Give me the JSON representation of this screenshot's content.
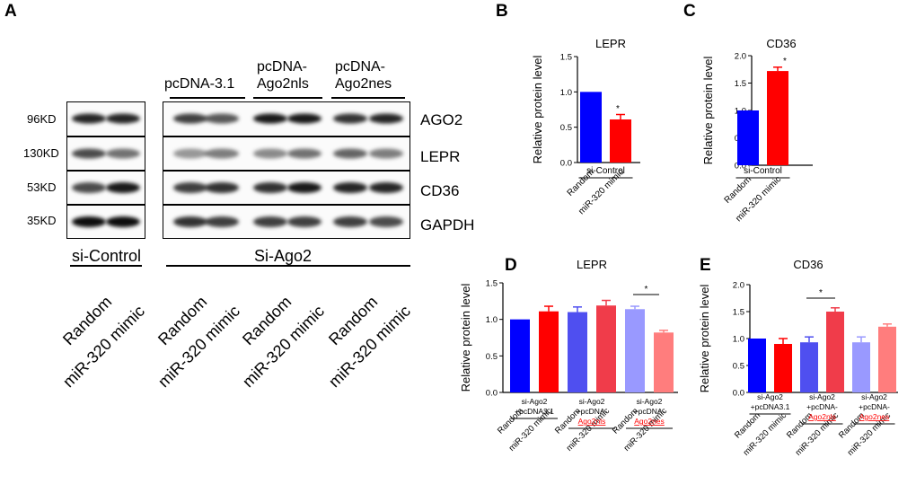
{
  "panel_letters": [
    "A",
    "B",
    "C",
    "D",
    "E"
  ],
  "blot": {
    "mw_markers": [
      "96KD",
      "130KD",
      "53KD",
      "35KD"
    ],
    "proteins": [
      "AGO2",
      "LEPR",
      "CD36",
      "GAPDH"
    ],
    "groups": [
      "pcDNA-3.1",
      "pcDNA-\nAgo2nls",
      "pcDNA-\nAgo2nes"
    ],
    "conditions": [
      "si-Control",
      "Si-Ago2"
    ],
    "lane_labels": [
      "Random",
      "miR-320 mimic",
      "Random",
      "miR-320 mimic",
      "Random",
      "miR-320 mimic",
      "Random",
      "miR-320 mimic"
    ],
    "band_intensity": {
      "AGO2": [
        0.85,
        0.85,
        0.75,
        0.65,
        0.9,
        0.9,
        0.8,
        0.85
      ],
      "LEPR": [
        0.7,
        0.55,
        0.4,
        0.5,
        0.45,
        0.55,
        0.6,
        0.5
      ],
      "CD36": [
        0.7,
        0.9,
        0.75,
        0.8,
        0.8,
        0.9,
        0.85,
        0.85
      ],
      "GAPDH": [
        0.95,
        0.95,
        0.8,
        0.75,
        0.75,
        0.75,
        0.75,
        0.7
      ]
    }
  },
  "chart_data": [
    {
      "id": "B",
      "type": "bar",
      "title": "LEPR",
      "ylabel": "Relative protein level",
      "ylim": [
        0,
        1.5
      ],
      "yticks": [
        "0.0",
        "0.5",
        "1.0",
        "1.5"
      ],
      "categories": [
        "Random",
        "miR-320 mimic"
      ],
      "values": [
        1.0,
        0.61
      ],
      "errors": [
        0,
        0.07
      ],
      "colors": [
        "#0000ff",
        "#ff0000"
      ],
      "group_labels": [
        "si-Control"
      ],
      "significance": [
        "*"
      ]
    },
    {
      "id": "C",
      "type": "bar",
      "title": "CD36",
      "ylabel": "Relative protein level",
      "ylim": [
        0,
        2.0
      ],
      "yticks": [
        "0.0",
        "0.5",
        "1.0",
        "1.5",
        "2.0"
      ],
      "categories": [
        "Random",
        "miR-320 mimic"
      ],
      "values": [
        1.0,
        1.72
      ],
      "errors": [
        0,
        0.07
      ],
      "colors": [
        "#0000ff",
        "#ff0000"
      ],
      "group_labels": [
        "si-Control"
      ],
      "significance": [
        "*"
      ]
    },
    {
      "id": "D",
      "type": "bar",
      "title": "LEPR",
      "ylabel": "Relative protein level",
      "ylim": [
        0,
        1.5
      ],
      "yticks": [
        "0.0",
        "0.5",
        "1.0",
        "1.5"
      ],
      "categories": [
        "Random",
        "miR-320 mimic",
        "Random",
        "miR-320 mimic",
        "Random",
        "miR-320 mimic"
      ],
      "values": [
        1.0,
        1.11,
        1.1,
        1.19,
        1.14,
        0.82
      ],
      "errors": [
        0,
        0.07,
        0.07,
        0.07,
        0.04,
        0.03
      ],
      "colors": [
        "#0000ff",
        "#ff0000",
        "#4f4ff0",
        "#f03c4a",
        "#9999ff",
        "#ff7d7d"
      ],
      "group_labels": [
        "si-Ago2\n+pcDNA3.1",
        "si-Ago2\n+pcDNA-\nAgo2nls",
        "si-Ago2\n+pcDNA-\nAgo2nes"
      ],
      "highlight_color": "#ff0000",
      "significance": [
        "*"
      ]
    },
    {
      "id": "E",
      "type": "bar",
      "title": "CD36",
      "ylabel": "Relative protein level",
      "ylim": [
        0,
        2.0
      ],
      "yticks": [
        "0.0",
        "0.5",
        "1.0",
        "1.5",
        "2.0"
      ],
      "categories": [
        "Random",
        "miR-320 mimic",
        "Random",
        "miR-320 mimic",
        "Random",
        "miR-320 mimic"
      ],
      "values": [
        1.0,
        0.9,
        0.93,
        1.5,
        0.93,
        1.22
      ],
      "errors": [
        0,
        0.1,
        0.1,
        0.07,
        0.1,
        0.05
      ],
      "colors": [
        "#0000ff",
        "#ff0000",
        "#4f4ff0",
        "#f03c4a",
        "#9999ff",
        "#ff7d7d"
      ],
      "group_labels": [
        "si-Ago2\n+pcDNA3.1",
        "si-Ago2\n+pcDNA-\nAgo2nls",
        "si-Ago2\n+pcDNA-\nAgo2nes"
      ],
      "highlight_color": "#ff0000",
      "significance": [
        "*"
      ]
    }
  ]
}
